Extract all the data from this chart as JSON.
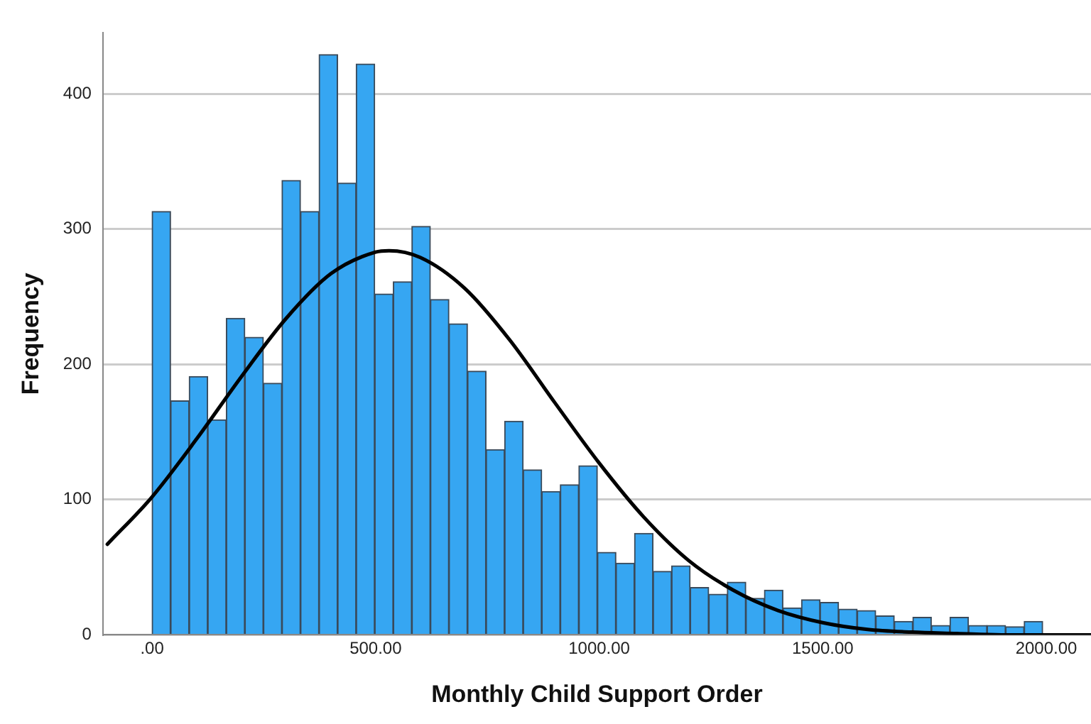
{
  "chart_data": {
    "type": "histogram",
    "xlabel": "Monthly Child Support Order",
    "ylabel": "Frequency",
    "bins": [
      0,
      41.5,
      83,
      124.5,
      166,
      207.5,
      249,
      290.5,
      332,
      373.5,
      415,
      456.5,
      498,
      539.5,
      581,
      622.5,
      664,
      705.5,
      747,
      788.5,
      830,
      871.5,
      913,
      954.5,
      996,
      1037.5,
      1079,
      1120.5,
      1162,
      1203.5,
      1245,
      1286.5,
      1328,
      1369.5,
      1411,
      1452.5,
      1494,
      1535.5,
      1577,
      1618.5,
      1660,
      1701.5,
      1743,
      1784.5,
      1826,
      1867.5,
      1909,
      1950.5,
      1992
    ],
    "values": [
      313,
      173,
      191,
      159,
      234,
      220,
      186,
      336,
      313,
      429,
      334,
      422,
      252,
      261,
      302,
      248,
      230,
      195,
      137,
      158,
      122,
      106,
      111,
      125,
      61,
      53,
      75,
      47,
      51,
      35,
      30,
      39,
      27,
      33,
      20,
      26,
      24,
      19,
      18,
      14,
      10,
      13,
      7,
      13,
      7,
      7,
      6,
      10
    ],
    "color": "#36a6f2",
    "series": [
      {
        "type": "line",
        "color": "#000000",
        "x": [
          -100,
          0,
          100,
          200,
          300,
          400,
          500,
          530,
          600,
          700,
          800,
          900,
          1000,
          1100,
          1200,
          1300,
          1400,
          1500,
          1600,
          1700,
          1800,
          1900,
          2000,
          2100
        ],
        "values": [
          67,
          102,
          145,
          191,
          234,
          267,
          283,
          284,
          279,
          256,
          218,
          172,
          127,
          87,
          55,
          33,
          18,
          9,
          4,
          2,
          1,
          0,
          0,
          0
        ]
      }
    ],
    "xlim": [
      -110,
      2100
    ],
    "xticks": [
      {
        "value": 0,
        "label": ".00"
      },
      {
        "value": 500,
        "label": "500.00"
      },
      {
        "value": 1000,
        "label": "1000.00"
      },
      {
        "value": 1500,
        "label": "1500.00"
      },
      {
        "value": 2000,
        "label": "2000.00"
      }
    ],
    "ylim": [
      0,
      445
    ],
    "yticks": [
      0,
      100,
      200,
      300,
      400
    ],
    "grid": "y",
    "legend": false,
    "marker": "none",
    "line_style": "solid"
  }
}
